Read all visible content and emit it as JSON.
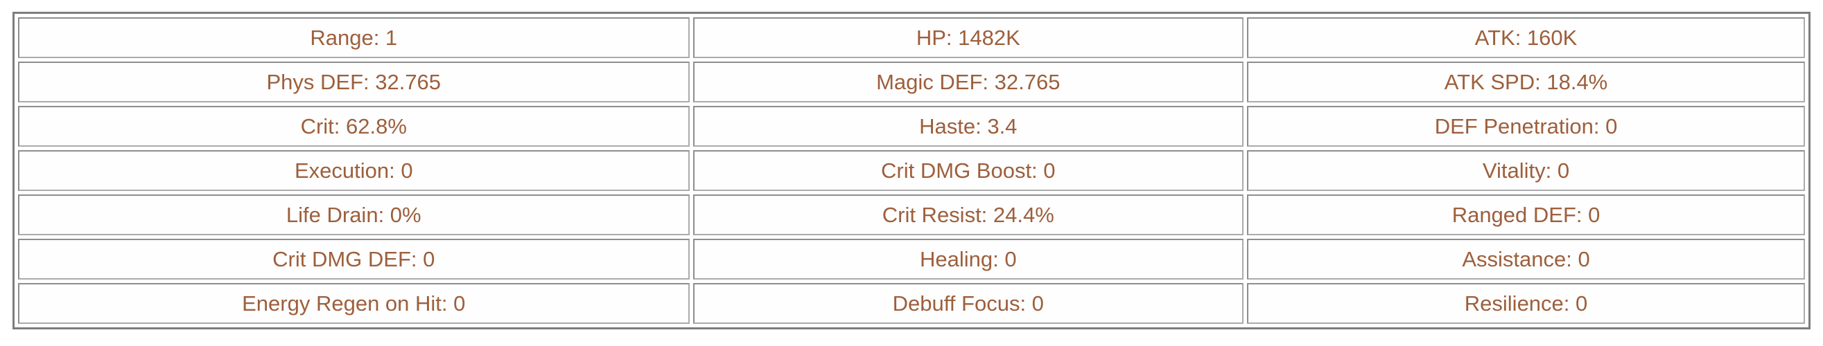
{
  "colors": {
    "page_background": "#ffffff",
    "stat_text": "#9d5f3c",
    "table_border": "#7d7d7d",
    "cell_border": "#ababab"
  },
  "stats": {
    "rows": [
      [
        "Range: 1",
        "HP: 1482K",
        "ATK: 160K"
      ],
      [
        "Phys DEF: 32.765",
        "Magic DEF: 32.765",
        "ATK SPD: 18.4%"
      ],
      [
        "Crit: 62.8%",
        "Haste: 3.4",
        "DEF Penetration: 0"
      ],
      [
        "Execution: 0",
        "Crit DMG Boost: 0",
        "Vitality: 0"
      ],
      [
        "Life Drain: 0%",
        "Crit Resist: 24.4%",
        "Ranged DEF: 0"
      ],
      [
        "Crit DMG DEF: 0",
        "Healing: 0",
        "Assistance: 0"
      ],
      [
        "Energy Regen on Hit: 0",
        "Debuff Focus: 0",
        "Resilience: 0"
      ]
    ]
  }
}
